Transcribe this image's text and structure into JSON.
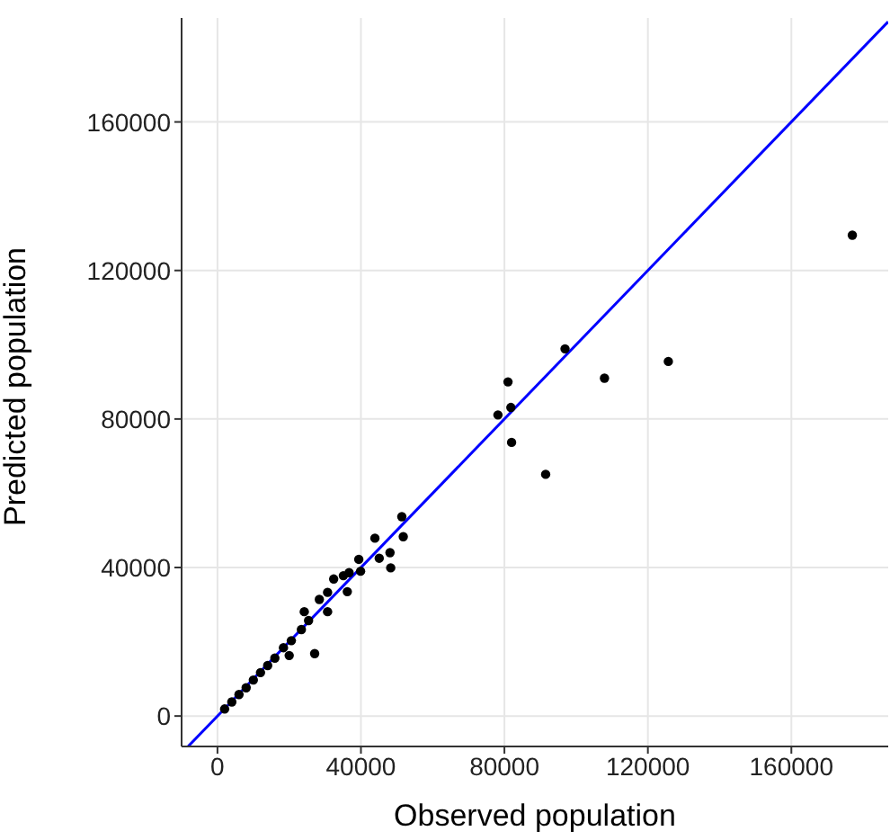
{
  "chart_data": {
    "type": "scatter",
    "xlabel": "Observed population",
    "ylabel": "Predicted population",
    "xlim": [
      -10000,
      187000
    ],
    "ylim": [
      -8200,
      188000
    ],
    "xticks": [
      0,
      40000,
      80000,
      120000,
      160000
    ],
    "yticks": [
      0,
      40000,
      80000,
      120000,
      160000
    ],
    "grid": true,
    "series": [
      {
        "color": "#000000",
        "marker": "circle",
        "x": [
          2000,
          4000,
          6000,
          8000,
          10000,
          12000,
          14000,
          16000,
          18400,
          20600,
          23400,
          24200,
          25400,
          27100,
          20000,
          28400,
          30700,
          30700,
          32400,
          35100,
          36200,
          36700,
          39400,
          39900,
          43900,
          45100,
          48100,
          48300,
          51400,
          51800,
          78200,
          81000,
          81800,
          82000,
          91500,
          96900,
          107900,
          125700,
          177000
        ],
        "values": [
          1900,
          3800,
          5800,
          7600,
          9700,
          11700,
          13600,
          15600,
          18400,
          20300,
          23300,
          28100,
          25700,
          16800,
          16300,
          31400,
          33300,
          28100,
          36900,
          37800,
          33500,
          38600,
          42200,
          39000,
          47900,
          42500,
          44000,
          39900,
          53700,
          48300,
          81100,
          90000,
          83100,
          73700,
          65100,
          98900,
          91000,
          95500,
          129500
        ]
      },
      {
        "type": "line",
        "color": "#0000ff",
        "marker": "none",
        "line_style": "solid",
        "x": [
          -8200,
          187000
        ],
        "values": [
          -8200,
          187000
        ]
      }
    ]
  }
}
